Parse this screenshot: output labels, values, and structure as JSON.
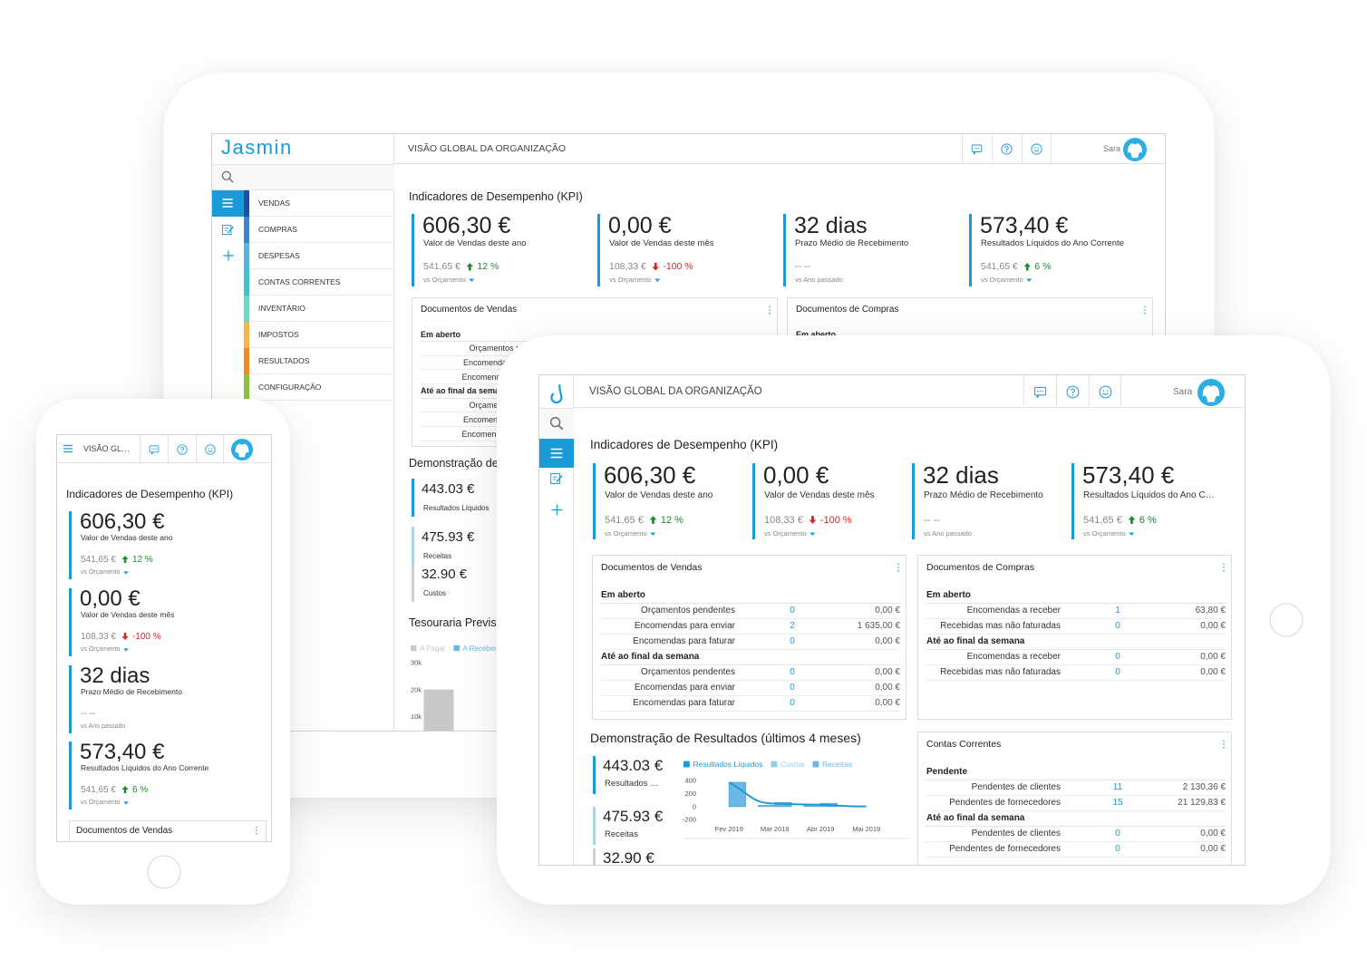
{
  "app": {
    "logo": "Jasmin",
    "page_title": "VISÃO GLOBAL DA ORGANIZAÇÃO",
    "user": "Sara"
  },
  "menu": [
    {
      "label": "VENDAS",
      "color": "#1f4e9c"
    },
    {
      "label": "COMPRAS",
      "color": "#3a86c8"
    },
    {
      "label": "DESPESAS",
      "color": "#5bb4e0"
    },
    {
      "label": "CONTAS CORRENTES",
      "color": "#3fc1c9"
    },
    {
      "label": "INVENTÁRIO",
      "color": "#6fd6c8"
    },
    {
      "label": "IMPOSTOS",
      "color": "#f6b84a"
    },
    {
      "label": "RESULTADOS",
      "color": "#f08a24"
    },
    {
      "label": "CONFIGURAÇÃO",
      "color": "#8cc63f"
    }
  ],
  "kpi_title": "Indicadores de Desempenho (KPI)",
  "kpis": [
    {
      "value": "606,30 €",
      "label": "Valor de Vendas deste ano",
      "ref": "541,65 €",
      "delta": "12 %",
      "trend": "up",
      "compare": "vs Orçamento"
    },
    {
      "value": "0,00 €",
      "label": "Valor de Vendas deste mês",
      "ref": "108,33 €",
      "delta": "-100 %",
      "trend": "down",
      "compare": "vs Orçamento"
    },
    {
      "value": "32 dias",
      "label": "Prazo Médio de Recebimento",
      "ref": "--  --",
      "compare": "vs Ano passado"
    },
    {
      "value": "573,40 €",
      "label": "Resultados Líquidos do Ano Corrente",
      "ref": "541,65 €",
      "delta": "6 %",
      "trend": "up",
      "compare": "vs Orçamento"
    }
  ],
  "sales_docs": {
    "title": "Documentos de Vendas",
    "sections": [
      {
        "heading": "Em aberto",
        "rows": [
          {
            "label": "Orçamentos pendentes",
            "count": "0",
            "amount": "0,00 €"
          },
          {
            "label": "Encomendas para enviar",
            "count": "2",
            "amount": "1 635,00 €"
          },
          {
            "label": "Encomendas para faturar",
            "count": "0",
            "amount": "0,00 €"
          }
        ]
      },
      {
        "heading": "Até ao final da semana",
        "rows": [
          {
            "label": "Orçamentos pendentes",
            "count": "0",
            "amount": "0,00 €"
          },
          {
            "label": "Encomendas para enviar",
            "count": "0",
            "amount": "0,00 €"
          },
          {
            "label": "Encomendas para faturar",
            "count": "0",
            "amount": "0,00 €"
          }
        ]
      }
    ]
  },
  "purchase_docs": {
    "title": "Documentos de Compras",
    "sections": [
      {
        "heading": "Em aberto",
        "rows": [
          {
            "label": "Encomendas a receber",
            "count": "1",
            "amount": "63,80 €"
          },
          {
            "label": "Recebidas mas não faturadas",
            "count": "0",
            "amount": "0,00 €"
          }
        ]
      },
      {
        "heading": "Até ao final da semana",
        "rows": [
          {
            "label": "Encomendas a receber",
            "count": "0",
            "amount": "0,00 €"
          },
          {
            "label": "Recebidas mas não faturadas",
            "count": "0",
            "amount": "0,00 €"
          }
        ]
      }
    ]
  },
  "accounts": {
    "title": "Contas Correntes",
    "sections": [
      {
        "heading": "Pendente",
        "rows": [
          {
            "label": "Pendentes de clientes",
            "count": "11",
            "amount": "2 130,36 €"
          },
          {
            "label": "Pendentes de fornecedores",
            "count": "15",
            "amount": "21 129,83 €"
          }
        ]
      },
      {
        "heading": "Até ao final da semana",
        "rows": [
          {
            "label": "Pendentes de clientes",
            "count": "0",
            "amount": "0,00 €"
          },
          {
            "label": "Pendentes de fornecedores",
            "count": "0",
            "amount": "0,00 €"
          }
        ]
      }
    ]
  },
  "income": {
    "title": "Demonstração de Resultados (últimos 4 meses)",
    "totals": [
      {
        "value": "443.03 €",
        "label": "Resultados Líquidos"
      },
      {
        "value": "475.93 €",
        "label": "Receitas"
      },
      {
        "value": "32.90 €",
        "label": "Custos"
      }
    ],
    "chart": {
      "type": "bar",
      "categories": [
        "Fev 2019",
        "Mar 2019",
        "Abr 2019",
        "Mai 2019"
      ],
      "series": [
        {
          "name": "Resultados Líquidos",
          "color": "#1a9bd7",
          "type": "line",
          "values": [
            370,
            45,
            28,
            0
          ]
        },
        {
          "name": "Custos",
          "color": "#8fd0f0",
          "values": [
            0,
            15,
            18,
            0
          ]
        },
        {
          "name": "Receitas",
          "color": "#6bb8e6",
          "values": [
            370,
            60,
            46,
            0
          ]
        }
      ],
      "ylim": [
        -200,
        400
      ],
      "yticks": [
        400,
        200,
        0,
        -200
      ]
    }
  },
  "treasury": {
    "title": "Tesouraria Previsional",
    "chart": {
      "type": "bar",
      "series": [
        {
          "name": "A Pagar",
          "color": "#c8c8c8",
          "values": [
            20000
          ]
        },
        {
          "name": "A Receber",
          "color": "#6bb8e6",
          "values": [
            null
          ]
        }
      ],
      "ylim": [
        0,
        30000
      ],
      "yticks": [
        {
          "value": 30000,
          "label": "30k"
        },
        {
          "value": 20000,
          "label": "20k"
        },
        {
          "value": 10000,
          "label": "10k"
        }
      ]
    }
  }
}
